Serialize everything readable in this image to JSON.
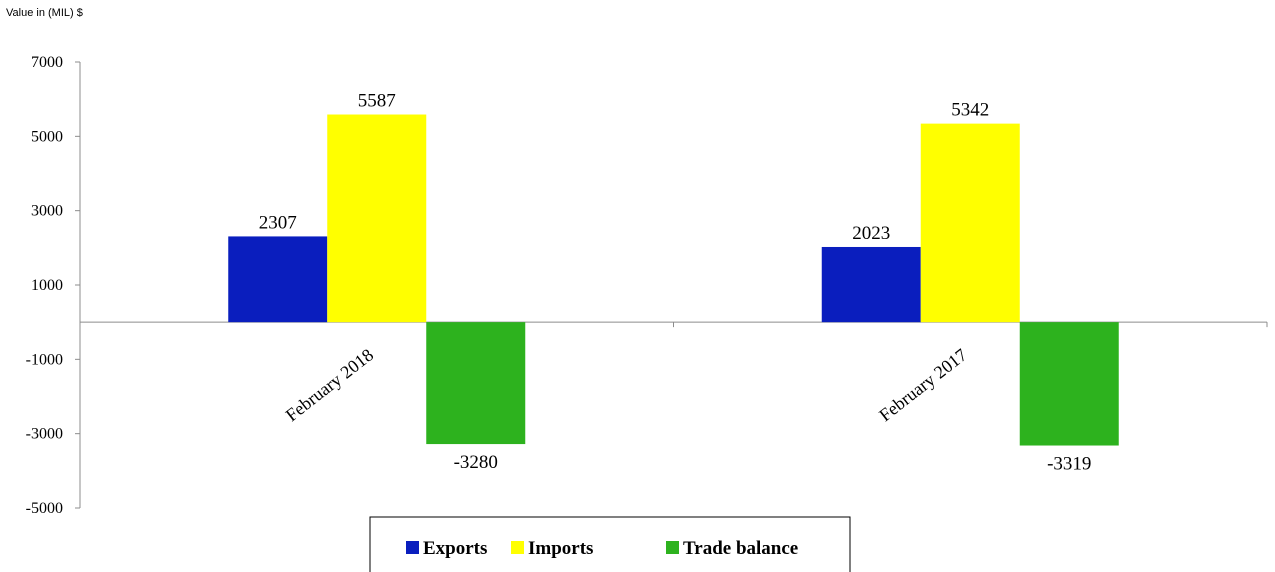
{
  "chart_data": {
    "type": "bar",
    "unit_label": "Value in (MIL)  $",
    "categories": [
      "February  2018",
      "February  2017"
    ],
    "series": [
      {
        "name": "Exports",
        "color": "#0a1ebe",
        "values": [
          2307,
          2023
        ]
      },
      {
        "name": "Imports",
        "color": "#ffff00",
        "values": [
          5587,
          5342
        ]
      },
      {
        "name": "Trade balance",
        "color": "#2db21e",
        "values": [
          -3280,
          -3319
        ]
      }
    ],
    "ylim": [
      -5000,
      7000
    ],
    "yticks": [
      7000,
      5000,
      3000,
      1000,
      -1000,
      -3000,
      -5000
    ],
    "grid": false,
    "legend": "bottom"
  }
}
